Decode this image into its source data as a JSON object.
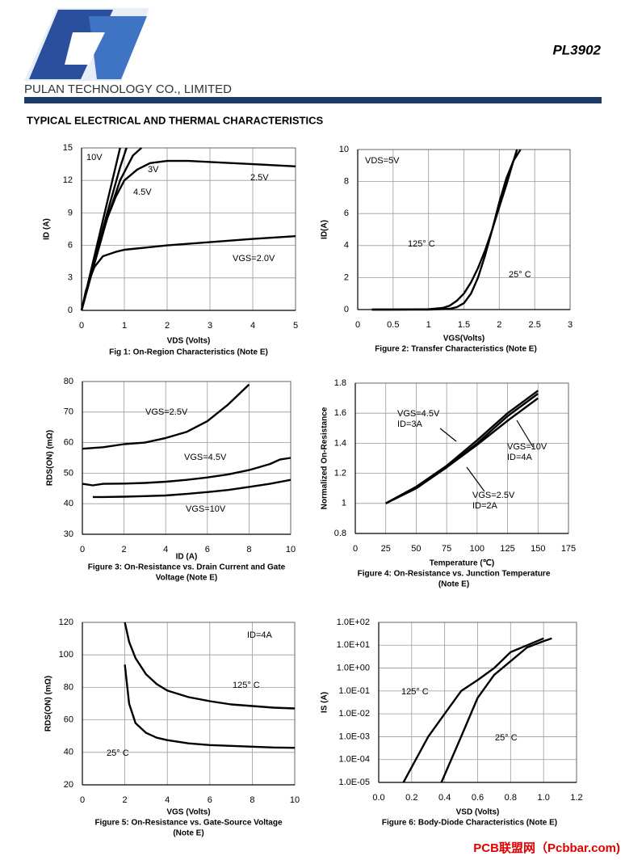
{
  "header": {
    "part": "PL3902",
    "company": "PULAN TECHNOLOGY CO., LIMITED",
    "section": "TYPICAL ELECTRICAL AND THERMAL CHARACTERISTICS",
    "watermark": "PCB联盟网（Pcbbar.com)"
  },
  "chart_data": [
    {
      "type": "line",
      "title": [
        "Fig 1: On-Region Characteristics (Note E)"
      ],
      "xlabel": "VDS (Volts)",
      "ylabel": "ID (A)",
      "xlim": [
        0,
        5
      ],
      "ylim": [
        0,
        15
      ],
      "xticks": [
        0,
        1,
        2,
        3,
        4,
        5
      ],
      "yticks": [
        0,
        3,
        6,
        9,
        12,
        15
      ],
      "grid": true,
      "series": [
        {
          "name": "10V",
          "color": "#000000",
          "x": [
            0,
            0.3,
            0.6,
            0.9
          ],
          "values": [
            0,
            5,
            10,
            15
          ]
        },
        {
          "name": "4.5V",
          "color": "#000000",
          "x": [
            0,
            0.3,
            0.6,
            0.9,
            1.05
          ],
          "values": [
            0,
            4.6,
            9,
            13.2,
            15
          ]
        },
        {
          "name": "3V",
          "color": "#000000",
          "x": [
            0,
            0.3,
            0.6,
            0.9,
            1.2,
            1.4
          ],
          "values": [
            0,
            4.3,
            8.5,
            12,
            14.3,
            15
          ]
        },
        {
          "name": "2.5V",
          "color": "#000000",
          "x": [
            0,
            0.2,
            0.4,
            0.6,
            0.8,
            1,
            1.3,
            1.6,
            2,
            2.5,
            3,
            4,
            5
          ],
          "values": [
            0,
            3,
            6,
            8.5,
            10.5,
            12,
            13,
            13.6,
            13.8,
            13.8,
            13.7,
            13.5,
            13.3
          ]
        },
        {
          "name": "VGS=2.0V",
          "color": "#000000",
          "x": [
            0,
            0.1,
            0.2,
            0.3,
            0.5,
            0.8,
            1,
            1.5,
            2,
            3,
            4,
            5
          ],
          "values": [
            0,
            1.8,
            3,
            4,
            5,
            5.4,
            5.6,
            5.8,
            6,
            6.3,
            6.6,
            6.85
          ]
        }
      ]
    },
    {
      "type": "line",
      "title": [
        "Figure 2: Transfer Characteristics (Note E)"
      ],
      "xlabel": "VGS(Volts)",
      "ylabel": "ID(A)",
      "annotations": [
        "VDS=5V"
      ],
      "xlim": [
        0,
        3
      ],
      "ylim": [
        0,
        10
      ],
      "xticks": [
        0,
        0.5,
        1,
        1.5,
        2,
        2.5,
        3
      ],
      "yticks": [
        0,
        2,
        4,
        6,
        8,
        10
      ],
      "grid": true,
      "series": [
        {
          "name": "125° C",
          "color": "#000000",
          "x": [
            0.2,
            0.5,
            1,
            1.2,
            1.3,
            1.4,
            1.5,
            1.6,
            1.7,
            1.8,
            1.9,
            2,
            2.1,
            2.2,
            2.25
          ],
          "values": [
            0,
            0,
            0.02,
            0.1,
            0.25,
            0.55,
            1,
            1.7,
            2.6,
            3.7,
            5,
            6.4,
            7.8,
            9.3,
            10
          ]
        },
        {
          "name": "25° C",
          "color": "#000000",
          "x": [
            0.2,
            1,
            1.3,
            1.4,
            1.5,
            1.6,
            1.7,
            1.8,
            1.9,
            2,
            2.1,
            2.2,
            2.3
          ],
          "values": [
            0,
            0,
            0.05,
            0.15,
            0.4,
            1,
            2,
            3.4,
            5,
            6.7,
            8.2,
            9.3,
            10
          ]
        }
      ]
    },
    {
      "type": "line",
      "title": [
        "Figure 3: On-Resistance vs. Drain Current and Gate",
        "Voltage (Note E)"
      ],
      "xlabel": "ID (A)",
      "ylabel": "RDS(ON) (mΩ)",
      "xlim": [
        0,
        10
      ],
      "ylim": [
        30,
        80
      ],
      "xticks": [
        0,
        2,
        4,
        6,
        8,
        10
      ],
      "yticks": [
        30,
        40,
        50,
        60,
        70,
        80
      ],
      "grid": true,
      "series": [
        {
          "name": "VGS=2.5V",
          "color": "#000000",
          "x": [
            0,
            1,
            2,
            3,
            4,
            5,
            6,
            7,
            8
          ],
          "values": [
            58,
            58.5,
            59.5,
            60,
            61.5,
            63.5,
            67,
            72.5,
            79
          ]
        },
        {
          "name": "VGS=4.5V",
          "color": "#000000",
          "x": [
            0,
            0.5,
            1,
            2,
            3,
            4,
            5,
            6,
            7,
            8,
            9,
            9.5,
            10
          ],
          "values": [
            46.5,
            46,
            46.5,
            46.6,
            46.8,
            47.2,
            47.8,
            48.6,
            49.6,
            51,
            53,
            54.5,
            55
          ]
        },
        {
          "name": "VGS=10V",
          "color": "#000000",
          "x": [
            0.5,
            1,
            2,
            3,
            4,
            5,
            6,
            7,
            8,
            9,
            10
          ],
          "values": [
            42.2,
            42.2,
            42.3,
            42.5,
            42.7,
            43.2,
            43.8,
            44.5,
            45.5,
            46.5,
            47.8
          ]
        }
      ]
    },
    {
      "type": "line",
      "title": [
        "Figure 4: On-Resistance vs. Junction Temperature",
        "(Note E)"
      ],
      "xlabel": "Temperature (℃)",
      "ylabel": "Normalized On-Resistance",
      "xlim": [
        0,
        175
      ],
      "ylim": [
        0.8,
        1.8
      ],
      "xticks": [
        0,
        25,
        50,
        75,
        100,
        125,
        150,
        175
      ],
      "yticks": [
        0.8,
        1,
        1.2,
        1.4,
        1.6,
        1.8
      ],
      "grid": true,
      "series": [
        {
          "name": "VGS=4.5V",
          "condition": "ID=3A",
          "color": "#000000",
          "x": [
            25,
            50,
            75,
            100,
            125,
            150
          ],
          "values": [
            1,
            1.11,
            1.25,
            1.42,
            1.6,
            1.75
          ]
        },
        {
          "name": "VGS=10V",
          "condition": "ID=4A",
          "color": "#000000",
          "x": [
            25,
            50,
            75,
            100,
            125,
            150
          ],
          "values": [
            1,
            1.1,
            1.24,
            1.39,
            1.55,
            1.7
          ]
        },
        {
          "name": "VGS=2.5V",
          "condition": "ID=2A",
          "color": "#000000",
          "x": [
            25,
            50,
            75,
            100,
            125,
            150
          ],
          "values": [
            1,
            1.11,
            1.24,
            1.4,
            1.58,
            1.73
          ]
        }
      ]
    },
    {
      "type": "line",
      "title": [
        "Figure 5: On-Resistance vs. Gate-Source Voltage",
        "(Note E)"
      ],
      "xlabel": "VGS (Volts)",
      "ylabel": "RDS(ON) (mΩ)",
      "annotations": [
        "ID=4A"
      ],
      "xlim": [
        0,
        10
      ],
      "ylim": [
        20,
        120
      ],
      "xticks": [
        0,
        2,
        4,
        6,
        8,
        10
      ],
      "yticks": [
        20,
        40,
        60,
        80,
        100,
        120
      ],
      "grid": true,
      "series": [
        {
          "name": "125° C",
          "color": "#000000",
          "x": [
            2,
            2.2,
            2.5,
            3,
            3.5,
            4,
            5,
            6,
            7,
            8,
            9,
            10
          ],
          "values": [
            120,
            108,
            98,
            88,
            82,
            78,
            74,
            71.5,
            69.5,
            68.5,
            67.5,
            67
          ]
        },
        {
          "name": "25° C",
          "color": "#000000",
          "x": [
            2,
            2.2,
            2.5,
            3,
            3.5,
            4,
            5,
            6,
            7,
            8,
            9,
            10
          ],
          "values": [
            94,
            70,
            58,
            52,
            49,
            47.5,
            45.5,
            44.5,
            44,
            43.5,
            43,
            42.8
          ]
        }
      ]
    },
    {
      "type": "line",
      "title": [
        "Figure 6: Body-Diode Characteristics (Note E)"
      ],
      "xlabel": "VSD (Volts)",
      "ylabel": "IS (A)",
      "log_y": true,
      "xlim": [
        0,
        1.2
      ],
      "ylim": [
        1e-05,
        100
      ],
      "xticks": [
        {
          "value": 0,
          "label": "0.0"
        },
        0.2,
        0.4,
        0.6,
        0.8,
        {
          "value": 1,
          "label": "1.0"
        },
        1.2
      ],
      "yticks": [
        {
          "value": 1e-05,
          "label": "1.0E-05"
        },
        {
          "value": 0.0001,
          "label": "1.0E-04"
        },
        {
          "value": 0.001,
          "label": "1.0E-03"
        },
        {
          "value": 0.01,
          "label": "1.0E-02"
        },
        {
          "value": 0.1,
          "label": "1.0E-01"
        },
        {
          "value": 1,
          "label": "1.0E+00"
        },
        {
          "value": 10,
          "label": "1.0E+01"
        },
        {
          "value": 100,
          "label": "1.0E+02"
        }
      ],
      "grid": true,
      "series": [
        {
          "name": "125° C",
          "color": "#000000",
          "x": [
            0.15,
            0.3,
            0.4,
            0.5,
            0.6,
            0.7,
            0.8,
            0.9,
            1.0
          ],
          "values": [
            1e-05,
            0.001,
            0.01,
            0.1,
            0.3,
            1,
            5,
            10,
            20
          ]
        },
        {
          "name": "25° C",
          "color": "#000000",
          "x": [
            0.38,
            0.5,
            0.6,
            0.7,
            0.8,
            0.9,
            1.0,
            1.05
          ],
          "values": [
            1e-05,
            0.001,
            0.05,
            0.5,
            2,
            8,
            15,
            20
          ]
        }
      ]
    }
  ]
}
